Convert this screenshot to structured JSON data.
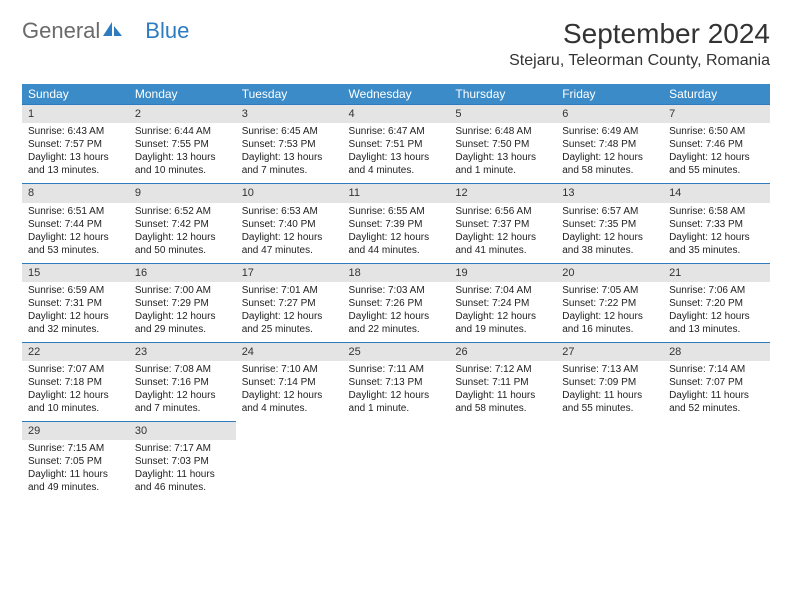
{
  "logo": {
    "text1": "General",
    "text2": "Blue"
  },
  "title": "September 2024",
  "location": "Stejaru, Teleorman County, Romania",
  "colors": {
    "header_bg": "#3b8bc8",
    "header_text": "#ffffff",
    "daynum_bg": "#e4e4e4",
    "daynum_border": "#2d7cc0",
    "text": "#222222",
    "logo_gray": "#6a6a6a",
    "logo_blue": "#2d7cc0"
  },
  "weekdays": [
    "Sunday",
    "Monday",
    "Tuesday",
    "Wednesday",
    "Thursday",
    "Friday",
    "Saturday"
  ],
  "weeks": [
    [
      {
        "n": "1",
        "sr": "Sunrise: 6:43 AM",
        "ss": "Sunset: 7:57 PM",
        "dl": "Daylight: 13 hours and 13 minutes."
      },
      {
        "n": "2",
        "sr": "Sunrise: 6:44 AM",
        "ss": "Sunset: 7:55 PM",
        "dl": "Daylight: 13 hours and 10 minutes."
      },
      {
        "n": "3",
        "sr": "Sunrise: 6:45 AM",
        "ss": "Sunset: 7:53 PM",
        "dl": "Daylight: 13 hours and 7 minutes."
      },
      {
        "n": "4",
        "sr": "Sunrise: 6:47 AM",
        "ss": "Sunset: 7:51 PM",
        "dl": "Daylight: 13 hours and 4 minutes."
      },
      {
        "n": "5",
        "sr": "Sunrise: 6:48 AM",
        "ss": "Sunset: 7:50 PM",
        "dl": "Daylight: 13 hours and 1 minute."
      },
      {
        "n": "6",
        "sr": "Sunrise: 6:49 AM",
        "ss": "Sunset: 7:48 PM",
        "dl": "Daylight: 12 hours and 58 minutes."
      },
      {
        "n": "7",
        "sr": "Sunrise: 6:50 AM",
        "ss": "Sunset: 7:46 PM",
        "dl": "Daylight: 12 hours and 55 minutes."
      }
    ],
    [
      {
        "n": "8",
        "sr": "Sunrise: 6:51 AM",
        "ss": "Sunset: 7:44 PM",
        "dl": "Daylight: 12 hours and 53 minutes."
      },
      {
        "n": "9",
        "sr": "Sunrise: 6:52 AM",
        "ss": "Sunset: 7:42 PM",
        "dl": "Daylight: 12 hours and 50 minutes."
      },
      {
        "n": "10",
        "sr": "Sunrise: 6:53 AM",
        "ss": "Sunset: 7:40 PM",
        "dl": "Daylight: 12 hours and 47 minutes."
      },
      {
        "n": "11",
        "sr": "Sunrise: 6:55 AM",
        "ss": "Sunset: 7:39 PM",
        "dl": "Daylight: 12 hours and 44 minutes."
      },
      {
        "n": "12",
        "sr": "Sunrise: 6:56 AM",
        "ss": "Sunset: 7:37 PM",
        "dl": "Daylight: 12 hours and 41 minutes."
      },
      {
        "n": "13",
        "sr": "Sunrise: 6:57 AM",
        "ss": "Sunset: 7:35 PM",
        "dl": "Daylight: 12 hours and 38 minutes."
      },
      {
        "n": "14",
        "sr": "Sunrise: 6:58 AM",
        "ss": "Sunset: 7:33 PM",
        "dl": "Daylight: 12 hours and 35 minutes."
      }
    ],
    [
      {
        "n": "15",
        "sr": "Sunrise: 6:59 AM",
        "ss": "Sunset: 7:31 PM",
        "dl": "Daylight: 12 hours and 32 minutes."
      },
      {
        "n": "16",
        "sr": "Sunrise: 7:00 AM",
        "ss": "Sunset: 7:29 PM",
        "dl": "Daylight: 12 hours and 29 minutes."
      },
      {
        "n": "17",
        "sr": "Sunrise: 7:01 AM",
        "ss": "Sunset: 7:27 PM",
        "dl": "Daylight: 12 hours and 25 minutes."
      },
      {
        "n": "18",
        "sr": "Sunrise: 7:03 AM",
        "ss": "Sunset: 7:26 PM",
        "dl": "Daylight: 12 hours and 22 minutes."
      },
      {
        "n": "19",
        "sr": "Sunrise: 7:04 AM",
        "ss": "Sunset: 7:24 PM",
        "dl": "Daylight: 12 hours and 19 minutes."
      },
      {
        "n": "20",
        "sr": "Sunrise: 7:05 AM",
        "ss": "Sunset: 7:22 PM",
        "dl": "Daylight: 12 hours and 16 minutes."
      },
      {
        "n": "21",
        "sr": "Sunrise: 7:06 AM",
        "ss": "Sunset: 7:20 PM",
        "dl": "Daylight: 12 hours and 13 minutes."
      }
    ],
    [
      {
        "n": "22",
        "sr": "Sunrise: 7:07 AM",
        "ss": "Sunset: 7:18 PM",
        "dl": "Daylight: 12 hours and 10 minutes."
      },
      {
        "n": "23",
        "sr": "Sunrise: 7:08 AM",
        "ss": "Sunset: 7:16 PM",
        "dl": "Daylight: 12 hours and 7 minutes."
      },
      {
        "n": "24",
        "sr": "Sunrise: 7:10 AM",
        "ss": "Sunset: 7:14 PM",
        "dl": "Daylight: 12 hours and 4 minutes."
      },
      {
        "n": "25",
        "sr": "Sunrise: 7:11 AM",
        "ss": "Sunset: 7:13 PM",
        "dl": "Daylight: 12 hours and 1 minute."
      },
      {
        "n": "26",
        "sr": "Sunrise: 7:12 AM",
        "ss": "Sunset: 7:11 PM",
        "dl": "Daylight: 11 hours and 58 minutes."
      },
      {
        "n": "27",
        "sr": "Sunrise: 7:13 AM",
        "ss": "Sunset: 7:09 PM",
        "dl": "Daylight: 11 hours and 55 minutes."
      },
      {
        "n": "28",
        "sr": "Sunrise: 7:14 AM",
        "ss": "Sunset: 7:07 PM",
        "dl": "Daylight: 11 hours and 52 minutes."
      }
    ],
    [
      {
        "n": "29",
        "sr": "Sunrise: 7:15 AM",
        "ss": "Sunset: 7:05 PM",
        "dl": "Daylight: 11 hours and 49 minutes."
      },
      {
        "n": "30",
        "sr": "Sunrise: 7:17 AM",
        "ss": "Sunset: 7:03 PM",
        "dl": "Daylight: 11 hours and 46 minutes."
      },
      null,
      null,
      null,
      null,
      null
    ]
  ]
}
